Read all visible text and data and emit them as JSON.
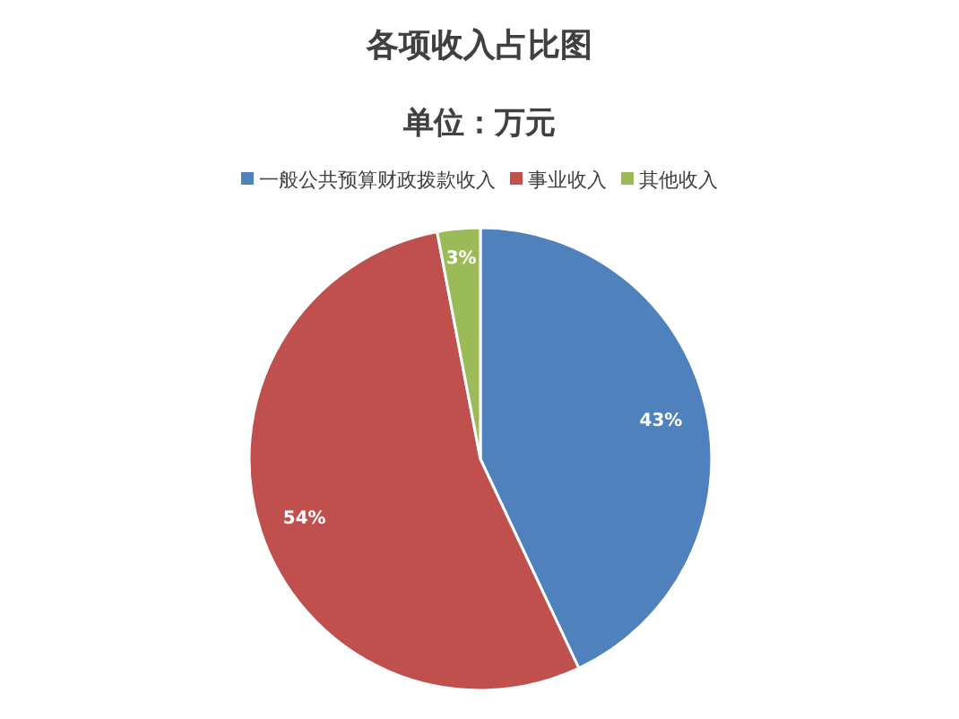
{
  "chart_data": {
    "type": "pie",
    "title": "各项收入占比图",
    "subtitle": "单位：万元",
    "categories": [
      "一般公共预算财政拨款收入",
      "事业收入",
      "其他收入"
    ],
    "values": [
      43,
      54,
      3
    ],
    "colors": [
      "#4f81bd",
      "#c0504d",
      "#9bbb59"
    ],
    "value_labels": [
      "43%",
      "54%",
      "3%"
    ],
    "legend": "top"
  }
}
